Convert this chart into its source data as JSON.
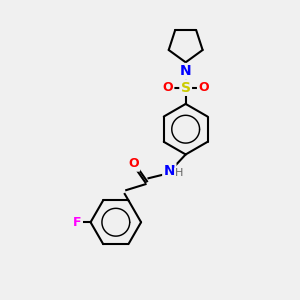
{
  "bg_color": "#f0f0f0",
  "line_color": "#000000",
  "atom_colors": {
    "N": "#0000ff",
    "O": "#ff0000",
    "S": "#cccc00",
    "F": "#ff00ff",
    "H": "#666666",
    "C": "#000000"
  },
  "font_size": 9,
  "line_width": 1.5
}
